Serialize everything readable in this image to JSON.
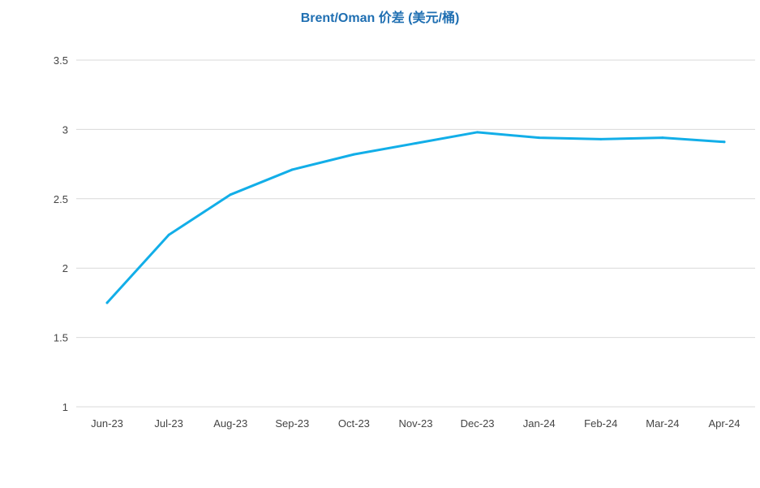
{
  "chart_data": {
    "type": "line",
    "title": "Brent/Oman 价差 (美元/桶)",
    "xlabel": "",
    "ylabel": "",
    "categories": [
      "Jun-23",
      "Jul-23",
      "Aug-23",
      "Sep-23",
      "Oct-23",
      "Nov-23",
      "Dec-23",
      "Jan-24",
      "Feb-24",
      "Mar-24",
      "Apr-24"
    ],
    "series": [
      {
        "values": [
          1.75,
          2.24,
          2.53,
          2.71,
          2.82,
          2.9,
          2.98,
          2.94,
          2.93,
          2.94,
          2.91
        ],
        "color": "#12aee8"
      }
    ],
    "ylim": [
      1,
      3.5
    ],
    "yticks": [
      "1",
      "1.5",
      "2",
      "2.5",
      "3",
      "3.5"
    ],
    "grid": true,
    "legend": "none"
  }
}
